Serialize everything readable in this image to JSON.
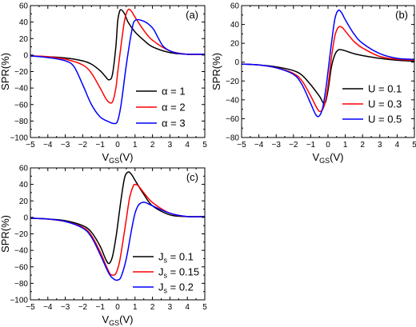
{
  "chart_data": [
    {
      "type": "line",
      "panel_label": "(a)",
      "xlabel": "V",
      "xlabel_sub": "GS",
      "xlabel_unit": "(V)",
      "ylabel": "SPR(%)",
      "xlim": [
        -5,
        5
      ],
      "ylim": [
        -100,
        60
      ],
      "xticks": [
        -5,
        -4,
        -3,
        -2,
        -1,
        0,
        1,
        2,
        3,
        4,
        5
      ],
      "yticks": [
        -100,
        -80,
        -60,
        -40,
        -20,
        0,
        20,
        40,
        60
      ],
      "legend_position": "lower-right",
      "series": [
        {
          "name": "α = 1",
          "color": "#000000",
          "x": [
            -5,
            -4,
            -3,
            -2,
            -1.5,
            -1,
            -0.7,
            -0.5,
            -0.3,
            -0.1,
            0,
            0.1,
            0.2,
            0.4,
            0.6,
            1,
            1.5,
            2,
            3,
            4,
            5
          ],
          "y": [
            -1,
            -2,
            -3.5,
            -7,
            -11,
            -19,
            -26,
            -30,
            -24,
            10,
            40,
            52,
            55,
            50,
            40,
            28,
            18,
            10,
            3,
            1,
            1
          ]
        },
        {
          "name": "α = 2",
          "color": "#ff0000",
          "x": [
            -5,
            -4,
            -3,
            -2,
            -1.5,
            -1,
            -0.6,
            -0.3,
            -0.1,
            0,
            0.2,
            0.4,
            0.6,
            0.8,
            1,
            1.5,
            2,
            3,
            4,
            5
          ],
          "y": [
            -1,
            -2,
            -5,
            -12,
            -22,
            -40,
            -55,
            -57,
            -40,
            -22,
            12,
            42,
            55,
            53,
            46,
            30,
            18,
            5,
            1,
            1
          ]
        },
        {
          "name": "α = 3",
          "color": "#0000ff",
          "x": [
            -5,
            -4,
            -3,
            -2.5,
            -2,
            -1.5,
            -1,
            -0.5,
            -0.2,
            0,
            0.2,
            0.5,
            0.8,
            1,
            1.5,
            2,
            2.3,
            2.6,
            3,
            3.5,
            4,
            5
          ],
          "y": [
            -1,
            -3,
            -7,
            -14,
            -36,
            -60,
            -75,
            -81,
            -83,
            -80,
            -60,
            -12,
            28,
            42,
            41,
            33,
            22,
            11,
            5,
            2,
            1,
            1
          ]
        }
      ]
    },
    {
      "type": "line",
      "panel_label": "(b)",
      "xlabel": "V",
      "xlabel_sub": "GS",
      "xlabel_unit": "(V)",
      "ylabel": "SPR(%)",
      "xlim": [
        -5,
        5
      ],
      "ylim": [
        -80,
        60
      ],
      "xticks": [
        -5,
        -4,
        -3,
        -2,
        -1,
        0,
        1,
        2,
        3,
        4,
        5
      ],
      "yticks": [
        -80,
        -60,
        -40,
        -20,
        0,
        20,
        40,
        60
      ],
      "legend_position": "lower-right",
      "series": [
        {
          "name": "U = 0.1",
          "color": "#000000",
          "x": [
            -5,
            -4,
            -3,
            -2,
            -1.5,
            -1,
            -0.5,
            -0.2,
            0,
            0.2,
            0.4,
            0.6,
            0.8,
            1,
            1.5,
            2,
            3,
            4,
            5
          ],
          "y": [
            -2,
            -3,
            -5,
            -9,
            -14,
            -24,
            -36,
            -44,
            -30,
            -5,
            8,
            13,
            13,
            12,
            9,
            7,
            4,
            2,
            1
          ]
        },
        {
          "name": "U = 0.3",
          "color": "#ff0000",
          "x": [
            -5,
            -4,
            -3,
            -2,
            -1.5,
            -1,
            -0.6,
            -0.4,
            -0.2,
            0,
            0.2,
            0.4,
            0.6,
            0.8,
            1,
            1.5,
            2,
            3,
            4,
            5
          ],
          "y": [
            -2,
            -3,
            -6,
            -12,
            -20,
            -36,
            -50,
            -52,
            -45,
            -25,
            5,
            28,
            37,
            37,
            33,
            22,
            15,
            6,
            3,
            2
          ]
        },
        {
          "name": "U = 0.5",
          "color": "#0000ff",
          "x": [
            -5,
            -4,
            -3,
            -2,
            -1.5,
            -1,
            -0.7,
            -0.5,
            -0.3,
            -0.1,
            0,
            0.2,
            0.4,
            0.6,
            0.8,
            1,
            1.5,
            2,
            3,
            4,
            5
          ],
          "y": [
            -2,
            -3,
            -6,
            -13,
            -24,
            -44,
            -56,
            -57,
            -48,
            -25,
            -10,
            20,
            46,
            55,
            52,
            45,
            30,
            20,
            9,
            4,
            3
          ]
        }
      ]
    },
    {
      "type": "line",
      "panel_label": "(c)",
      "xlabel": "V",
      "xlabel_sub": "GS",
      "xlabel_unit": "(V)",
      "ylabel": "SPR(%)",
      "xlim": [
        -5,
        5
      ],
      "ylim": [
        -100,
        60
      ],
      "xticks": [
        -5,
        -4,
        -3,
        -2,
        -1,
        0,
        1,
        2,
        3,
        4,
        5
      ],
      "yticks": [
        -100,
        -80,
        -60,
        -40,
        -20,
        0,
        20,
        40,
        60
      ],
      "legend_position": "lower-right",
      "series": [
        {
          "name": "J_s = 0.1",
          "color": "#000000",
          "x": [
            -5,
            -4,
            -3,
            -2,
            -1.5,
            -1,
            -0.7,
            -0.5,
            -0.3,
            -0.1,
            0,
            0.2,
            0.4,
            0.6,
            0.8,
            1,
            1.5,
            2,
            3,
            4,
            5
          ],
          "y": [
            -1,
            -2,
            -4,
            -10,
            -18,
            -35,
            -50,
            -56,
            -48,
            -25,
            -10,
            22,
            48,
            55,
            52,
            45,
            28,
            14,
            3,
            1,
            1
          ]
        },
        {
          "name": "J_s = 0.15",
          "color": "#ff0000",
          "x": [
            -5,
            -4,
            -3,
            -2,
            -1.5,
            -1,
            -0.5,
            -0.3,
            -0.1,
            0.1,
            0.3,
            0.5,
            0.7,
            0.9,
            1,
            1.2,
            1.5,
            2,
            3,
            4,
            5
          ],
          "y": [
            -1,
            -2,
            -5,
            -12,
            -22,
            -42,
            -66,
            -70,
            -68,
            -55,
            -30,
            -2,
            25,
            38,
            40,
            38,
            30,
            18,
            5,
            1,
            1
          ]
        },
        {
          "name": "J_s = 0.2",
          "color": "#0000ff",
          "x": [
            -5,
            -4,
            -3,
            -2,
            -1.5,
            -1,
            -0.5,
            -0.2,
            0,
            0.2,
            0.5,
            0.8,
            1,
            1.2,
            1.4,
            1.6,
            2,
            3,
            4,
            5
          ],
          "y": [
            -1,
            -2,
            -5,
            -13,
            -24,
            -45,
            -68,
            -75,
            -76,
            -72,
            -50,
            -15,
            5,
            15,
            18,
            18,
            14,
            5,
            1,
            1
          ]
        }
      ]
    }
  ]
}
